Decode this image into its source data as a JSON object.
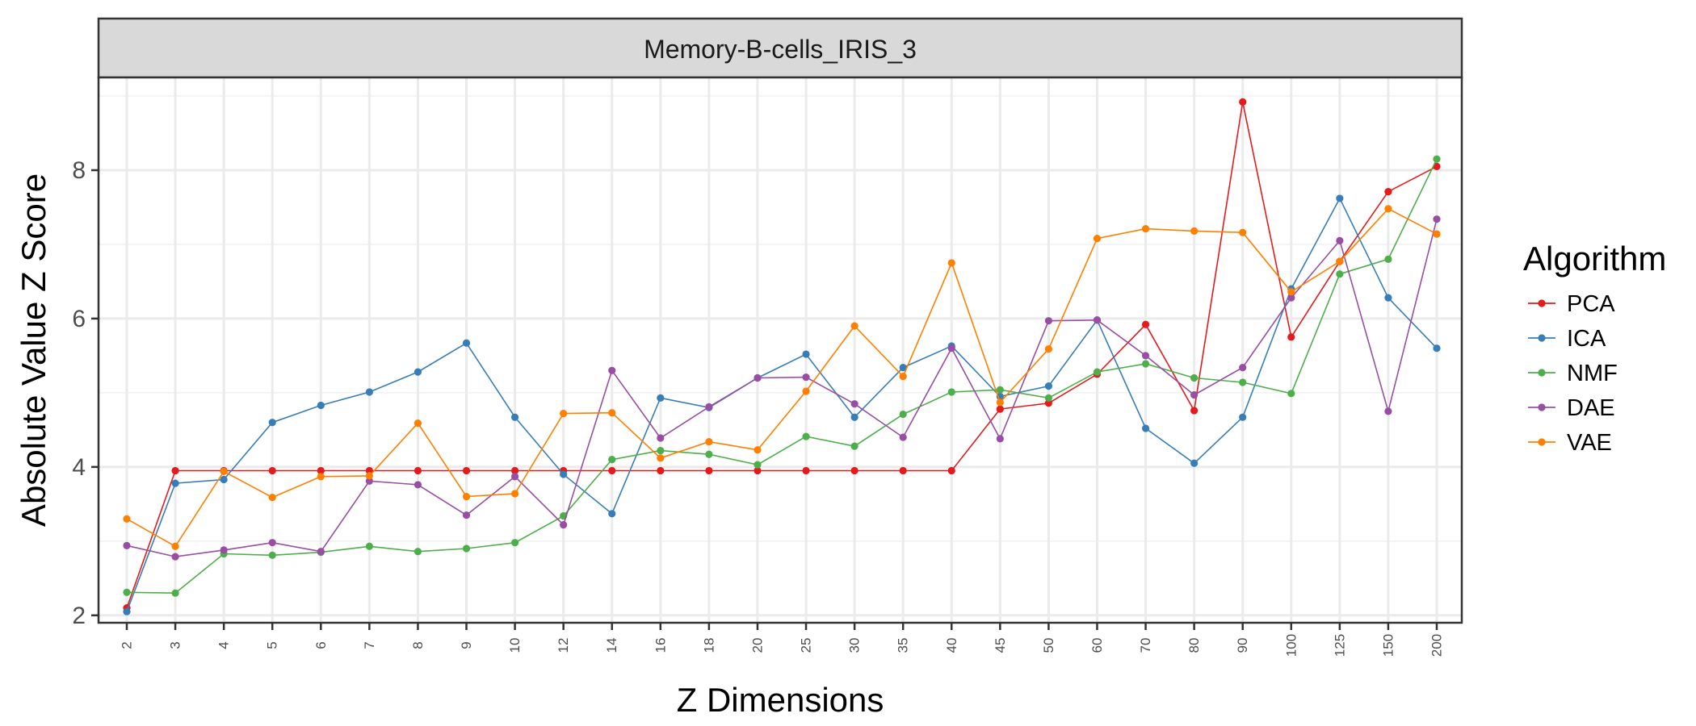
{
  "chart_data": {
    "type": "line",
    "title": "",
    "facet_label": "Memory-B-cells_IRIS_3",
    "xlabel": "Z Dimensions",
    "ylabel": "Absolute Value Z Score",
    "categories": [
      "2",
      "3",
      "4",
      "5",
      "6",
      "7",
      "8",
      "9",
      "10",
      "12",
      "14",
      "16",
      "18",
      "20",
      "25",
      "30",
      "35",
      "40",
      "45",
      "50",
      "60",
      "70",
      "80",
      "90",
      "100",
      "125",
      "150",
      "200"
    ],
    "ylim": [
      1.9,
      9.25
    ],
    "yticks": [
      2,
      4,
      6,
      8
    ],
    "grid": true,
    "legend": {
      "title": "Algorithm",
      "position": "right"
    },
    "series": [
      {
        "name": "PCA",
        "color": "#e41a1c",
        "values": [
          2.1,
          3.95,
          3.95,
          3.95,
          3.95,
          3.95,
          3.95,
          3.95,
          3.95,
          3.95,
          3.95,
          3.95,
          3.95,
          3.95,
          3.95,
          3.95,
          3.95,
          3.95,
          4.78,
          4.86,
          5.25,
          5.92,
          4.76,
          8.92,
          5.75,
          6.77,
          7.71,
          8.05
        ]
      },
      {
        "name": "ICA",
        "color": "#377eb8",
        "values": [
          2.05,
          3.78,
          3.83,
          4.6,
          4.83,
          5.01,
          5.28,
          5.67,
          4.67,
          3.9,
          3.37,
          4.93,
          4.8,
          5.2,
          5.52,
          4.67,
          5.34,
          5.63,
          4.95,
          5.09,
          5.98,
          4.52,
          4.05,
          4.67,
          6.4,
          7.62,
          6.28,
          5.6
        ]
      },
      {
        "name": "NMF",
        "color": "#4daf4a",
        "values": [
          2.31,
          2.3,
          2.83,
          2.81,
          2.85,
          2.93,
          2.86,
          2.9,
          2.98,
          3.34,
          4.1,
          4.22,
          4.17,
          4.03,
          4.41,
          4.28,
          4.71,
          5.01,
          5.04,
          4.93,
          5.28,
          5.39,
          5.2,
          5.14,
          4.99,
          6.6,
          6.8,
          8.15
        ]
      },
      {
        "name": "DAE",
        "color": "#984ea3",
        "values": [
          2.94,
          2.79,
          2.88,
          2.98,
          2.86,
          3.81,
          3.76,
          3.35,
          3.87,
          3.22,
          5.3,
          4.39,
          4.81,
          5.2,
          5.21,
          4.85,
          4.4,
          5.6,
          4.38,
          5.97,
          5.98,
          5.5,
          4.97,
          5.34,
          6.28,
          7.05,
          4.75,
          7.34
        ]
      },
      {
        "name": "VAE",
        "color": "#ff7f00",
        "values": [
          3.3,
          2.93,
          3.94,
          3.59,
          3.87,
          3.88,
          4.59,
          3.6,
          3.64,
          4.72,
          4.73,
          4.12,
          4.34,
          4.23,
          5.02,
          5.9,
          5.22,
          6.75,
          4.87,
          5.59,
          7.08,
          7.21,
          7.18,
          7.16,
          6.36,
          6.77,
          7.48,
          7.14
        ]
      }
    ]
  }
}
